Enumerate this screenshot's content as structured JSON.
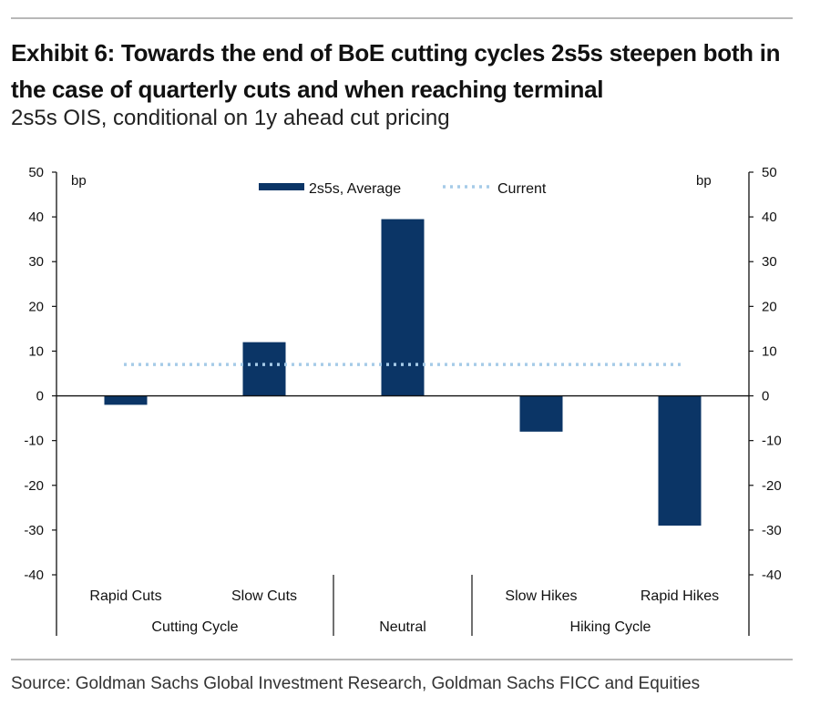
{
  "header": {
    "title": "Exhibit 6: Towards the end of BoE cutting cycles 2s5s steepen both in the case of quarterly cuts and when reaching terminal",
    "subtitle": "2s5s OIS, conditional on 1y ahead cut pricing"
  },
  "footer": {
    "source": "Source: Goldman Sachs Global Investment Research, Goldman Sachs FICC and Equities"
  },
  "colors": {
    "bar": "#0b3566",
    "current": "#a6cbe8",
    "axis": "#111111"
  },
  "chart_data": {
    "type": "bar",
    "categories": [
      "Rapid Cuts",
      "Slow Cuts",
      "Neutral",
      "Slow Hikes",
      "Rapid Hikes"
    ],
    "category_labels": [
      "Rapid Cuts",
      "Slow Cuts",
      "",
      "Slow Hikes",
      "Rapid Hikes"
    ],
    "groups": [
      {
        "label": "Cutting Cycle",
        "categories": [
          "Rapid Cuts",
          "Slow Cuts"
        ]
      },
      {
        "label": "Neutral",
        "categories": [
          "Neutral"
        ]
      },
      {
        "label": "Hiking Cycle",
        "categories": [
          "Slow Hikes",
          "Rapid Hikes"
        ]
      }
    ],
    "series": [
      {
        "name": "2s5s, Average",
        "kind": "bar",
        "values": [
          -2,
          12,
          39.5,
          -8,
          -29
        ]
      },
      {
        "name": "Current",
        "kind": "dotted-line",
        "value": 7
      }
    ],
    "ylim": [
      -40,
      50
    ],
    "yticks": [
      "50",
      "40",
      "30",
      "20",
      "10",
      "0",
      "-10",
      "-20",
      "-30",
      "-40"
    ],
    "ylabel_left": "bp",
    "ylabel_right": "bp",
    "legend_position": "top-center"
  }
}
